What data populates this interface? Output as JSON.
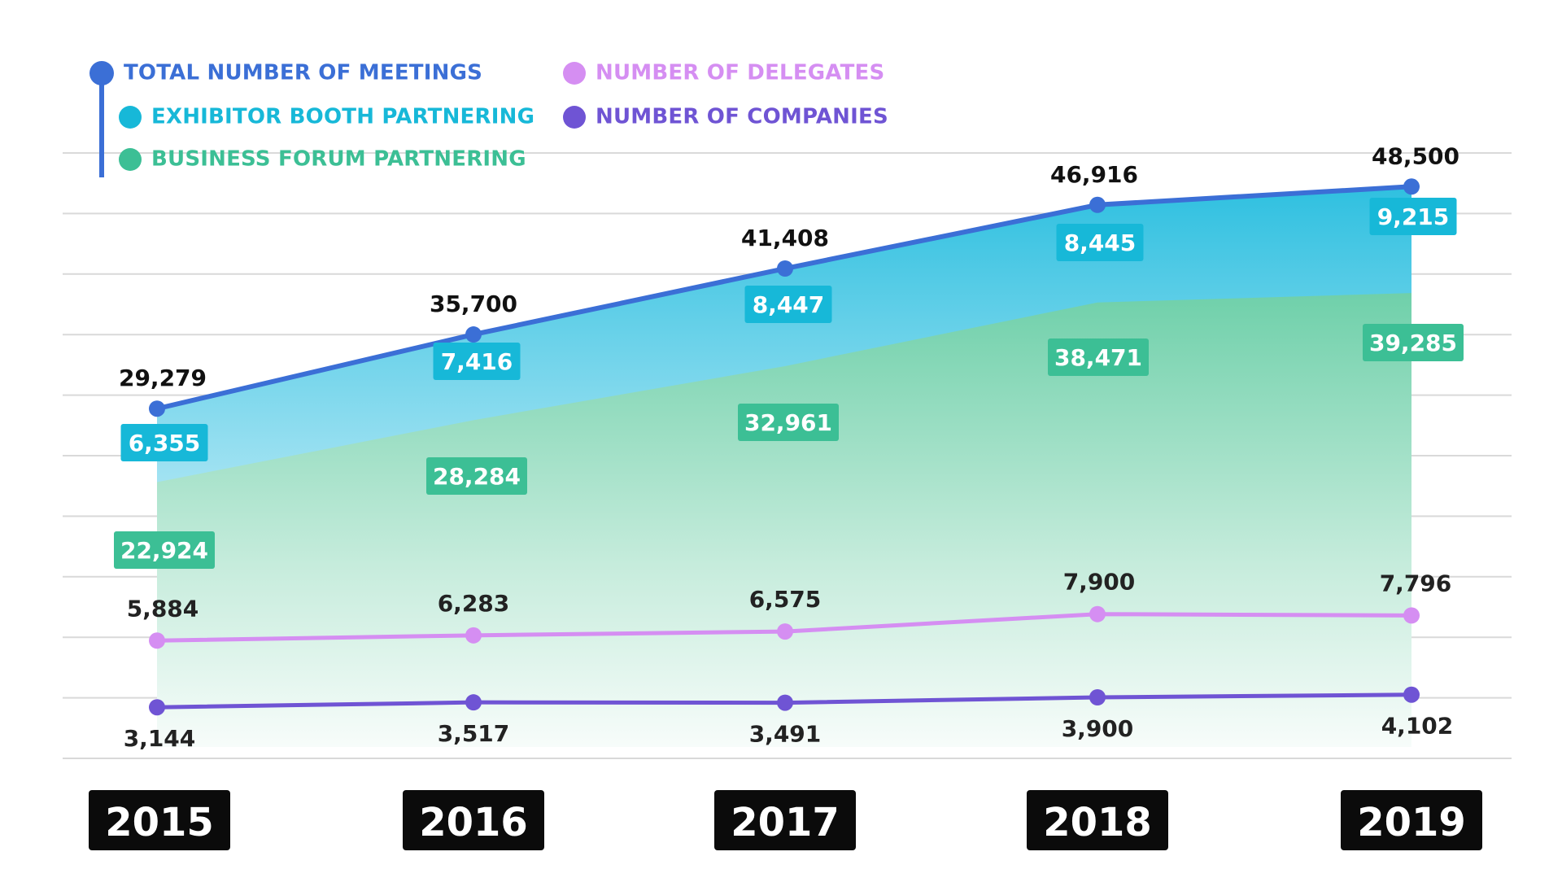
{
  "chart_data": {
    "type": "area",
    "categories": [
      "2015",
      "2016",
      "2017",
      "2018",
      "2019"
    ],
    "series": [
      {
        "name": "TOTAL NUMBER OF MEETINGS",
        "key": "total",
        "color": "#3b6fd6",
        "values": [
          29279,
          35700,
          41408,
          46916,
          48500
        ],
        "labels": [
          "29,279",
          "35,700",
          "41,408",
          "46,916",
          "48,500"
        ]
      },
      {
        "name": "EXHIBITOR BOOTH PARTNERING",
        "key": "exhibitor",
        "color": "#17b8d8",
        "values": [
          6355,
          7416,
          8447,
          8445,
          9215
        ],
        "labels": [
          "6,355",
          "7,416",
          "8,447",
          "8,445",
          "9,215"
        ]
      },
      {
        "name": "BUSINESS FORUM PARTNERING",
        "key": "forum",
        "color": "#3cbf95",
        "values": [
          22924,
          28284,
          32961,
          38471,
          39285
        ],
        "labels": [
          "22,924",
          "28,284",
          "32,961",
          "38,471",
          "39,285"
        ]
      },
      {
        "name": "NUMBER OF DELEGATES",
        "key": "delegates",
        "color": "#d58ef2",
        "values": [
          5884,
          6283,
          6575,
          7900,
          7796
        ],
        "labels": [
          "5,884",
          "6,283",
          "6,575",
          "7,900",
          "7,796"
        ]
      },
      {
        "name": "NUMBER OF COMPANIES",
        "key": "companies",
        "color": "#6f54d4",
        "values": [
          3144,
          3517,
          3491,
          3900,
          4102
        ],
        "labels": [
          "3,144",
          "3,517",
          "3,491",
          "3,900",
          "4,102"
        ]
      }
    ],
    "legend": [
      {
        "text": "TOTAL NUMBER OF MEETINGS",
        "color": "#3b6fd6"
      },
      {
        "text": "EXHIBITOR BOOTH PARTNERING",
        "color": "#17b8d8"
      },
      {
        "text": "BUSINESS FORUM PARTNERING",
        "color": "#3cbf95"
      },
      {
        "text": "NUMBER OF DELEGATES",
        "color": "#d58ef2"
      },
      {
        "text": "NUMBER OF COMPANIES",
        "color": "#6f54d4"
      }
    ],
    "legend_position": "top-left",
    "grid": true,
    "ylim": [
      0,
      50000
    ]
  }
}
